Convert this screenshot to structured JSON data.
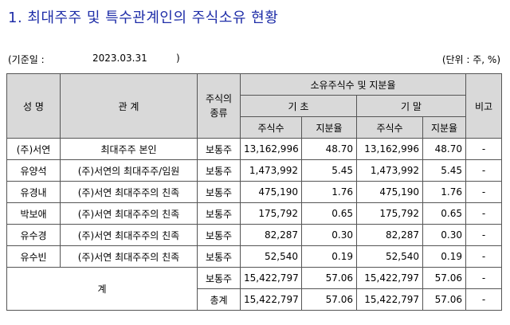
{
  "title": "1. 최대주주 및 특수관계인의 주식소유 현황",
  "meta": {
    "open": "(기준일 :",
    "date": "2023.03.31",
    "close": ")",
    "unit": "(단위 : 주, %)"
  },
  "headers": {
    "name": "성 명",
    "relation": "관 계",
    "stock_type": "주식의\n종류",
    "ownership": "소유주식수 및 지분율",
    "start": "기 초",
    "end": "기 말",
    "shares": "주식수",
    "ratio": "지분율",
    "note": "비고"
  },
  "rows": [
    {
      "name": "(주)서연",
      "relation": "최대주주 본인",
      "type": "보통주",
      "start_shares": "13,162,996",
      "start_ratio": "48.70",
      "end_shares": "13,162,996",
      "end_ratio": "48.70",
      "note": "-"
    },
    {
      "name": "유양석",
      "relation": "(주)서연의 최대주주/임원",
      "type": "보통주",
      "start_shares": "1,473,992",
      "start_ratio": "5.45",
      "end_shares": "1,473,992",
      "end_ratio": "5.45",
      "note": "-"
    },
    {
      "name": "유경내",
      "relation": "(주)서연 최대주주의 친족",
      "type": "보통주",
      "start_shares": "475,190",
      "start_ratio": "1.76",
      "end_shares": "475,190",
      "end_ratio": "1.76",
      "note": "-"
    },
    {
      "name": "박보애",
      "relation": "(주)서연 최대주주의 친족",
      "type": "보통주",
      "start_shares": "175,792",
      "start_ratio": "0.65",
      "end_shares": "175,792",
      "end_ratio": "0.65",
      "note": "-"
    },
    {
      "name": "유수경",
      "relation": "(주)서연 최대주주의 친족",
      "type": "보통주",
      "start_shares": "82,287",
      "start_ratio": "0.30",
      "end_shares": "82,287",
      "end_ratio": "0.30",
      "note": "-"
    },
    {
      "name": "유수빈",
      "relation": "(주)서연 최대주주의 친족",
      "type": "보통주",
      "start_shares": "52,540",
      "start_ratio": "0.19",
      "end_shares": "52,540",
      "end_ratio": "0.19",
      "note": "-"
    }
  ],
  "total": {
    "label": "계",
    "rows": [
      {
        "type": "보통주",
        "start_shares": "15,422,797",
        "start_ratio": "57.06",
        "end_shares": "15,422,797",
        "end_ratio": "57.06",
        "note": "-"
      },
      {
        "type": "총계",
        "start_shares": "15,422,797",
        "start_ratio": "57.06",
        "end_shares": "15,422,797",
        "end_ratio": "57.06",
        "note": "-"
      }
    ]
  }
}
